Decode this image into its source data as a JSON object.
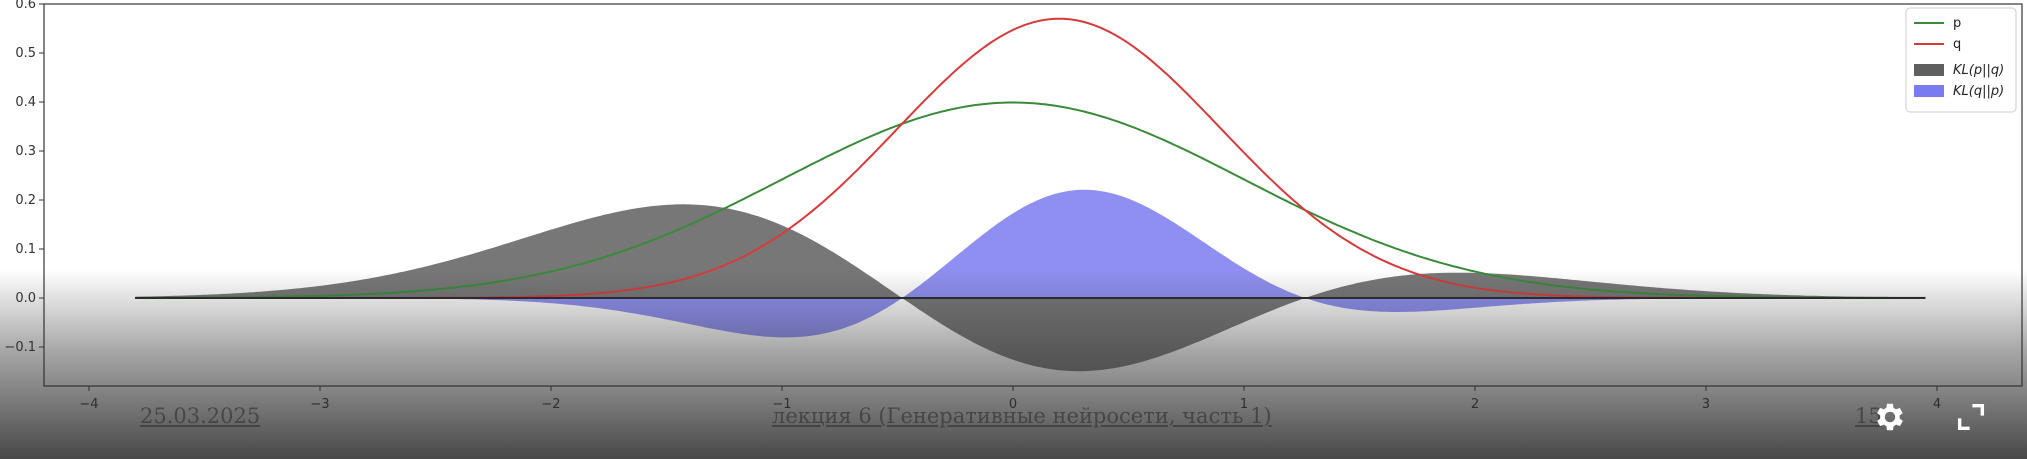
{
  "chart_data": {
    "type": "area",
    "title": "",
    "xlabel": "",
    "ylabel": "",
    "xlim": [
      -4.2,
      4.4
    ],
    "ylim": [
      -0.19,
      0.6
    ],
    "xticks": [
      -4,
      -3,
      -2,
      -1,
      0,
      1,
      2,
      3,
      4
    ],
    "yticks": [
      -0.1,
      0.0,
      0.1,
      0.2,
      0.3,
      0.4,
      0.5,
      0.6
    ],
    "xtick_labels": [
      "−4",
      "−3",
      "−2",
      "−1",
      "0",
      "1",
      "2",
      "3",
      "4"
    ],
    "ytick_labels": [
      "−0.1",
      "0.0",
      "0.1",
      "0.2",
      "0.3",
      "0.4",
      "0.5",
      "0.6"
    ],
    "x_range": [
      -3.8,
      3.95
    ],
    "grid": false,
    "legend_position": "top-right",
    "series": [
      {
        "name": "p",
        "kind": "line",
        "color": "#3a8a3a",
        "distribution": "normal",
        "mean": 0.0,
        "std": 1.0
      },
      {
        "name": "q",
        "kind": "line",
        "color": "#d43c3c",
        "distribution": "normal",
        "mean": 0.2,
        "std": 0.7
      },
      {
        "name": "KL(p||q)",
        "kind": "area",
        "color": "#5f5f5f",
        "formula": "p*log(p/q)"
      },
      {
        "name": "KL(q||p)",
        "kind": "area",
        "color": "#7b7bf0",
        "formula": "q*log(q/p)"
      }
    ]
  },
  "legend": {
    "items": [
      {
        "label": "p",
        "color": "#3a8a3a",
        "kind": "line"
      },
      {
        "label": "q",
        "color": "#d43c3c",
        "kind": "line"
      },
      {
        "label": "KL(p||q)",
        "color": "#5f5f5f",
        "kind": "patch"
      },
      {
        "label": "KL(q||p)",
        "color": "#7b7bf0",
        "kind": "patch"
      }
    ]
  },
  "slide_footer": {
    "date": "25.03.2025",
    "title": "лекция 6 (Генеративные нейросети, часть 1)",
    "page": "15"
  },
  "player": {
    "settings_icon": "gear-icon",
    "fullscreen_icon": "fullscreen-icon"
  }
}
